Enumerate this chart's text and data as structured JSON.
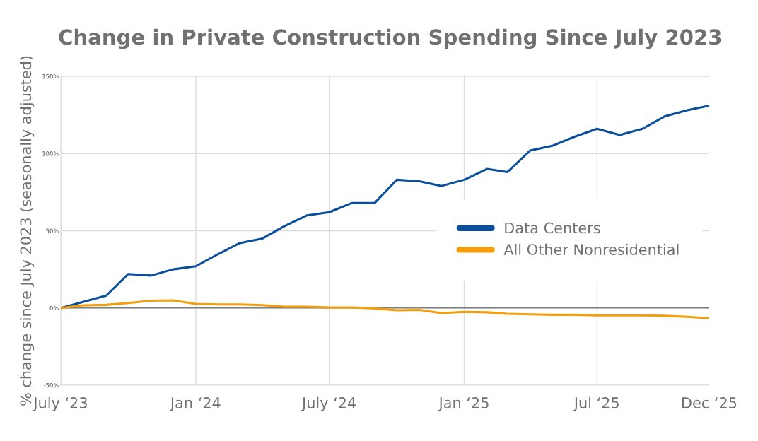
{
  "chart_data": {
    "type": "line",
    "title": "Change in Private Construction Spending Since July 2023",
    "ylabel": "% change since July 2023 (seasonally adjusted)",
    "x": [
      "2023-07",
      "2023-08",
      "2023-09",
      "2023-10",
      "2023-11",
      "2023-12",
      "2024-01",
      "2024-02",
      "2024-03",
      "2024-04",
      "2024-05",
      "2024-06",
      "2024-07",
      "2024-08",
      "2024-09",
      "2024-10",
      "2024-11",
      "2024-12",
      "2025-01",
      "2025-02",
      "2025-03",
      "2025-04",
      "2025-05",
      "2025-06",
      "2025-07",
      "2025-08",
      "2025-09",
      "2025-10",
      "2025-11",
      "2025-12"
    ],
    "series": [
      {
        "name": "Data Centers",
        "color": "#0b4f9c",
        "values": [
          0,
          4,
          8,
          22,
          21,
          25,
          27,
          35,
          42,
          45,
          53,
          60,
          62,
          68,
          68,
          83,
          82,
          79,
          83,
          90,
          88,
          102,
          105,
          111,
          116,
          112,
          116,
          124,
          128,
          131
        ]
      },
      {
        "name": "All Other Nonresidential",
        "color": "#f59e0b",
        "values": [
          0,
          1.7,
          2,
          3.2,
          4.7,
          4.9,
          2.6,
          2.3,
          2.3,
          1.8,
          0.8,
          0.8,
          0.3,
          0.3,
          -0.3,
          -1.5,
          -1.3,
          -3.3,
          -2.5,
          -2.8,
          -3.8,
          -4.1,
          -4.4,
          -4.4,
          -4.8,
          -4.8,
          -4.8,
          -5.1,
          -5.7,
          -6.6
        ]
      }
    ],
    "xlim": [
      "2023-07",
      "2025-12"
    ],
    "xticks": [
      {
        "value": "2023-07",
        "label": "July ‘23"
      },
      {
        "value": "2024-01",
        "label": "Jan ‘24"
      },
      {
        "value": "2024-07",
        "label": "July ‘24"
      },
      {
        "value": "2025-01",
        "label": "Jan ‘25"
      },
      {
        "value": "2025-07",
        "label": "Jul ‘25"
      },
      {
        "value": "2025-12",
        "label": "Dec ‘25"
      }
    ],
    "ylim": [
      -50,
      150
    ],
    "yticks": [
      {
        "value": -50,
        "label": "-50%"
      },
      {
        "value": 0,
        "label": "0%"
      },
      {
        "value": 50,
        "label": "50%"
      },
      {
        "value": 100,
        "label": "100%"
      },
      {
        "value": 150,
        "label": "150%"
      }
    ],
    "ref_lines": [
      {
        "axis": "y",
        "value": 0,
        "color": "#808080"
      }
    ],
    "grid": true,
    "legend": "right",
    "marker": "none",
    "line_style": "solid"
  }
}
